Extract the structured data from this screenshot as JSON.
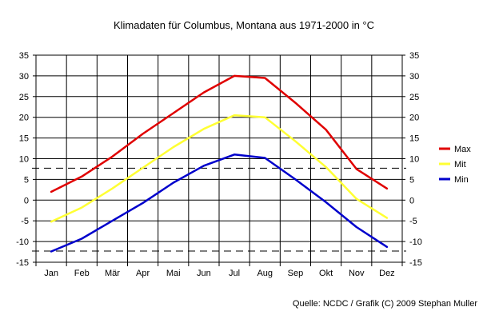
{
  "chart_data": {
    "type": "line",
    "title": "Klimadaten für Columbus, Montana aus 1971-2000 in °C",
    "categories": [
      "Jan",
      "Feb",
      "Mär",
      "Apr",
      "Mai",
      "Jun",
      "Jul",
      "Aug",
      "Sep",
      "Okt",
      "Nov",
      "Dez"
    ],
    "ylim": [
      -15,
      35
    ],
    "yticks": [
      -15,
      -10,
      -5,
      0,
      5,
      10,
      15,
      20,
      25,
      30,
      35
    ],
    "secondary_y_axis": true,
    "grid": true,
    "reference_lines": [
      7.7,
      -12.3
    ],
    "legend_position": "right",
    "series": [
      {
        "name": "Max",
        "color": "#e00000",
        "values": [
          2.0,
          5.7,
          10.5,
          16.0,
          21.0,
          26.0,
          30.0,
          29.5,
          23.5,
          17.0,
          7.5,
          2.8
        ]
      },
      {
        "name": "Mit",
        "color": "#ffff33",
        "values": [
          -5.2,
          -1.8,
          2.8,
          7.8,
          12.8,
          17.2,
          20.5,
          20.0,
          14.2,
          8.0,
          0.3,
          -4.3
        ]
      },
      {
        "name": "Min",
        "color": "#0000cc",
        "values": [
          -12.4,
          -9.3,
          -5.0,
          -0.7,
          4.2,
          8.3,
          11.0,
          10.2,
          5.0,
          -0.5,
          -6.5,
          -11.3
        ]
      }
    ],
    "source": "Quelle: NCDC / Grafik (C) 2009 Stephan Muller"
  }
}
